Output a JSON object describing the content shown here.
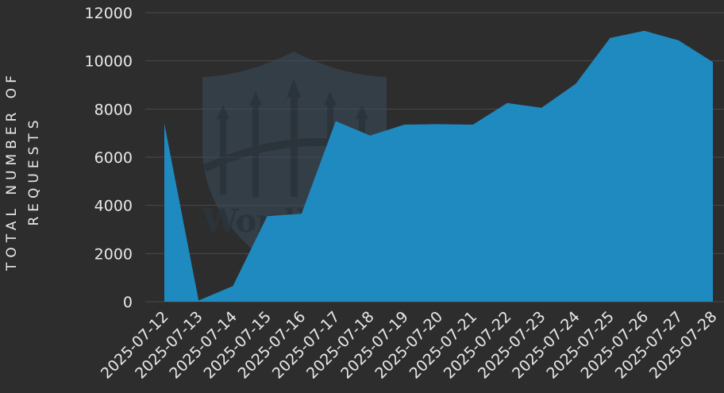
{
  "chart_data": {
    "type": "area",
    "title": "",
    "xlabel": "",
    "ylabel_lines": [
      "TOTAL NUMBER OF",
      "REQUESTS"
    ],
    "x": [
      "2025-07-12",
      "2025-07-13",
      "2025-07-14",
      "2025-07-15",
      "2025-07-16",
      "2025-07-17",
      "2025-07-18",
      "2025-07-19",
      "2025-07-20",
      "2025-07-21",
      "2025-07-22",
      "2025-07-23",
      "2025-07-24",
      "2025-07-25",
      "2025-07-26",
      "2025-07-27",
      "2025-07-28"
    ],
    "values": [
      7400,
      50,
      650,
      3550,
      3650,
      7500,
      6900,
      7350,
      7370,
      7350,
      8250,
      8050,
      9050,
      10950,
      11250,
      10850,
      9950
    ],
    "yticks": [
      0,
      2000,
      4000,
      6000,
      8000,
      10000,
      12000
    ],
    "ylim": [
      0,
      12000
    ],
    "grid": true,
    "legend": "none",
    "colors": {
      "background": "#2d2d2d",
      "area": "#1f8ac0",
      "grid": "#4a4a4a",
      "text": "#e8e8e8",
      "watermark": "#3d5a75"
    }
  },
  "watermark": {
    "text": "WordFence"
  }
}
